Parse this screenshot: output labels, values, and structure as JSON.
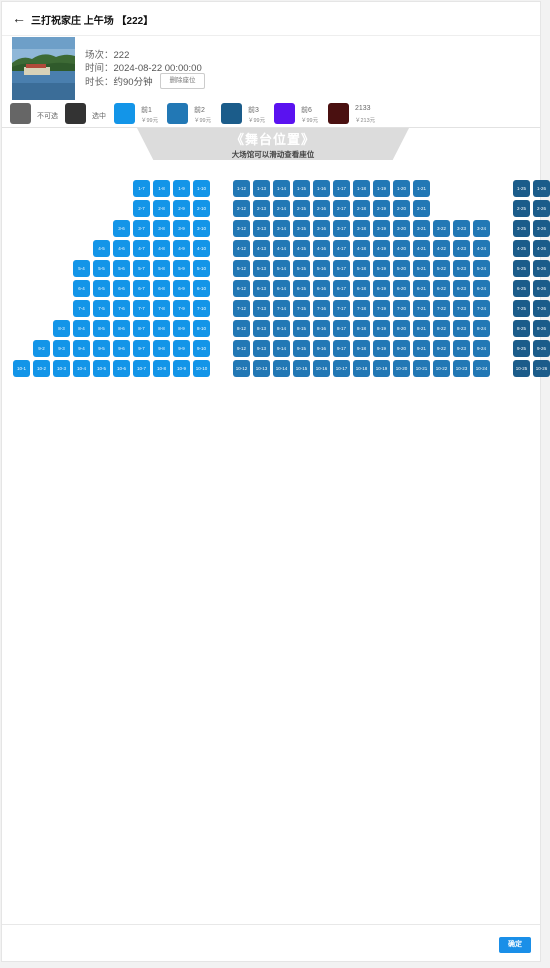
{
  "header": {
    "back_icon": "arrow-left-icon",
    "title": "三打祝家庄 上午场 【222】"
  },
  "session": {
    "session_label": "场次：",
    "session_value": "222",
    "time_label": "时间：",
    "time_value": "2024-08-22 00:00:00",
    "duration_label": "时长：",
    "duration_value": "约90分钟",
    "clear_label": "删除座位"
  },
  "legend": [
    {
      "name": "不可选",
      "price": "",
      "color": "#666666"
    },
    {
      "name": "选中",
      "price": "",
      "color": "#333333"
    },
    {
      "name": "前1",
      "price": "￥99元",
      "color": "#1395e8"
    },
    {
      "name": "前2",
      "price": "￥99元",
      "color": "#2278b5"
    },
    {
      "name": "前3",
      "price": "￥99元",
      "color": "#1b5c8a"
    },
    {
      "name": "前6",
      "price": "￥99元",
      "color": "#5a12f0"
    },
    {
      "name": "2133",
      "price": "￥213元",
      "color": "#4a1010"
    }
  ],
  "stage": {
    "title": "《舞台位置》",
    "hint": "大场馆可以滑动查看座位"
  },
  "seat_rows": [
    {
      "row": 1,
      "seats": [
        7,
        8,
        9,
        10,
        12,
        13,
        14,
        15,
        16,
        17,
        18,
        19,
        20,
        21,
        25,
        26
      ]
    },
    {
      "row": 2,
      "seats": [
        7,
        8,
        9,
        10,
        12,
        13,
        14,
        15,
        16,
        17,
        18,
        19,
        20,
        21,
        25,
        26
      ]
    },
    {
      "row": 3,
      "seats": [
        6,
        7,
        8,
        9,
        10,
        12,
        13,
        14,
        15,
        16,
        17,
        18,
        19,
        20,
        21,
        22,
        23,
        24,
        25,
        26
      ]
    },
    {
      "row": 4,
      "seats": [
        5,
        6,
        7,
        8,
        9,
        10,
        12,
        13,
        14,
        15,
        16,
        17,
        18,
        19,
        20,
        21,
        22,
        23,
        24,
        25,
        26
      ]
    },
    {
      "row": 5,
      "seats": [
        4,
        5,
        6,
        7,
        8,
        9,
        10,
        12,
        13,
        14,
        15,
        16,
        17,
        18,
        19,
        20,
        21,
        22,
        23,
        24,
        25,
        26
      ]
    },
    {
      "row": 6,
      "seats": [
        4,
        5,
        6,
        7,
        8,
        9,
        10,
        12,
        13,
        14,
        15,
        16,
        17,
        18,
        19,
        20,
        21,
        22,
        23,
        24,
        25,
        26
      ]
    },
    {
      "row": 7,
      "seats": [
        4,
        5,
        6,
        7,
        8,
        9,
        10,
        12,
        13,
        14,
        15,
        16,
        17,
        18,
        19,
        20,
        21,
        22,
        23,
        24,
        25,
        26
      ]
    },
    {
      "row": 8,
      "seats": [
        3,
        4,
        5,
        6,
        7,
        8,
        9,
        10,
        12,
        13,
        14,
        15,
        16,
        17,
        18,
        19,
        20,
        21,
        22,
        23,
        24,
        25,
        26
      ]
    },
    {
      "row": 9,
      "seats": [
        2,
        3,
        4,
        5,
        6,
        7,
        8,
        9,
        10,
        12,
        13,
        14,
        15,
        16,
        17,
        18,
        19,
        20,
        21,
        22,
        23,
        24,
        25,
        26
      ]
    },
    {
      "row": 10,
      "seats": [
        1,
        2,
        3,
        4,
        5,
        6,
        7,
        8,
        9,
        10,
        12,
        13,
        14,
        15,
        16,
        17,
        18,
        19,
        20,
        21,
        22,
        23,
        24,
        25,
        26
      ]
    }
  ],
  "tier_colors": {
    "left": "#1395e8",
    "middle": "#2278b5",
    "right": "#1b5c8a"
  },
  "footer": {
    "confirm_label": "确定"
  }
}
